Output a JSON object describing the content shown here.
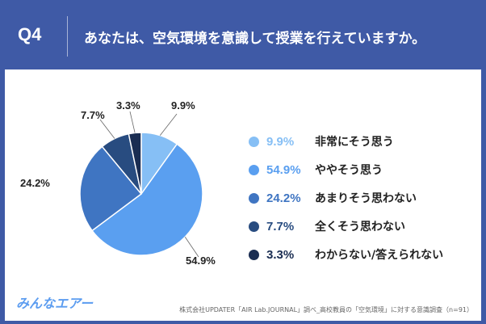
{
  "header": {
    "qnum": "Q4",
    "question": "あなたは、空気環境を意識して授業を行えていますか。"
  },
  "chart_data": {
    "type": "pie",
    "categories": [
      "非常にそう思う",
      "ややそう思う",
      "あまりそう思わない",
      "全くそう思わない",
      "わからない/答えられない"
    ],
    "values": [
      9.9,
      54.9,
      24.2,
      7.7,
      3.3
    ],
    "labels": [
      "9.9%",
      "54.9%",
      "24.2%",
      "7.7%",
      "3.3%"
    ],
    "colors": [
      "#86bff5",
      "#5a9ff0",
      "#3f75c2",
      "#284c80",
      "#1a2d52"
    ],
    "legend_position": "right"
  },
  "footer": {
    "logo": "みんなエアー",
    "source": "株式会社UPDATER「AIR Lab.JOURNAL」調べ_高校教員の「空気環境」に対する意識調査（n=91）"
  }
}
